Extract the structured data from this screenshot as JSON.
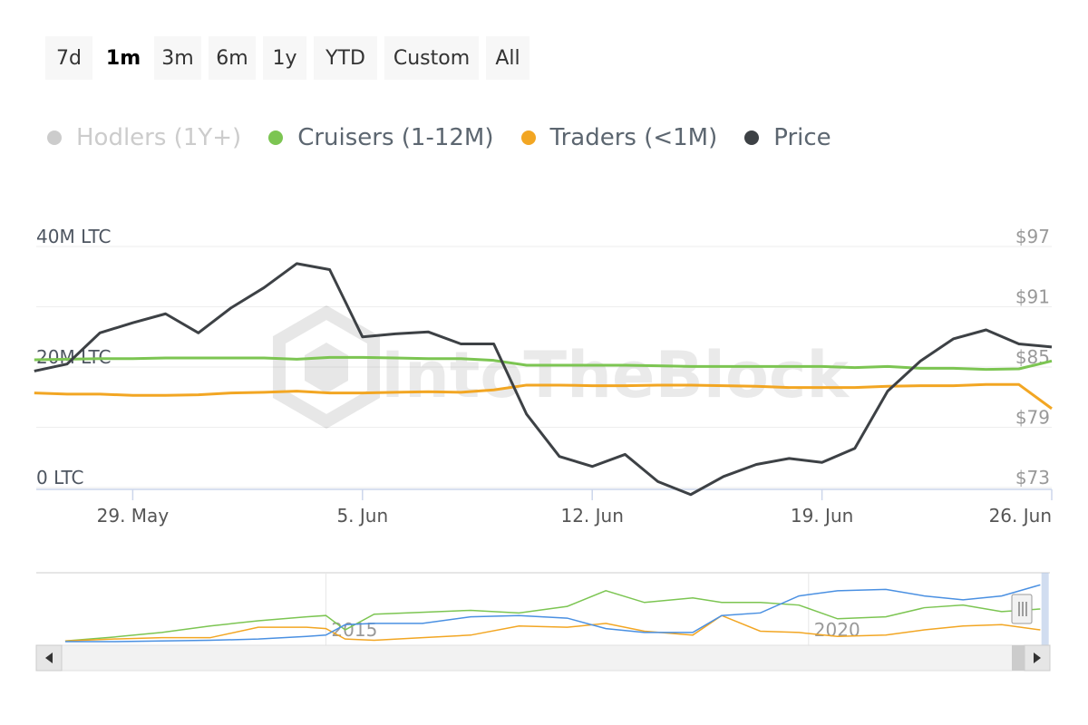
{
  "range_selector": {
    "buttons": [
      "7d",
      "1m",
      "3m",
      "6m",
      "1y",
      "YTD",
      "Custom",
      "All"
    ],
    "active": "1m"
  },
  "legend": [
    {
      "name": "Hodlers (1Y+)",
      "color": "#cccccc",
      "hidden": true
    },
    {
      "name": "Cruisers (1-12M)",
      "color": "#7cc552",
      "hidden": false
    },
    {
      "name": "Traders (<1M)",
      "color": "#f2a623",
      "hidden": false
    },
    {
      "name": "Price",
      "color": "#3d4145",
      "hidden": false
    }
  ],
  "watermark": "IntoTheBlock",
  "navigator": {
    "labels": [
      "2015",
      "2020"
    ]
  },
  "chart_data": {
    "type": "line",
    "x": [
      "May 26",
      "May 27",
      "May 28",
      "May 29",
      "May 30",
      "May 31",
      "Jun 1",
      "Jun 2",
      "Jun 3",
      "Jun 4",
      "Jun 5",
      "Jun 6",
      "Jun 7",
      "Jun 8",
      "Jun 9",
      "Jun 10",
      "Jun 11",
      "Jun 12",
      "Jun 13",
      "Jun 14",
      "Jun 15",
      "Jun 16",
      "Jun 17",
      "Jun 18",
      "Jun 19",
      "Jun 20",
      "Jun 21",
      "Jun 22",
      "Jun 23",
      "Jun 24",
      "Jun 25",
      "Jun 26"
    ],
    "x_ticks": [
      "29. May",
      "5. Jun",
      "12. Jun",
      "19. Jun",
      "26. Jun"
    ],
    "y_left": {
      "ticks": [
        "0 LTC",
        "20M LTC",
        "40M LTC"
      ],
      "range": [
        0,
        40
      ]
    },
    "y_right": {
      "ticks": [
        "$73",
        "$79",
        "$85",
        "$91",
        "$97"
      ],
      "range": [
        73,
        97
      ]
    },
    "series": [
      {
        "name": "Cruisers (1-12M)",
        "axis": "left",
        "color": "#7cc552",
        "values": [
          21.2,
          21.3,
          21.4,
          21.4,
          21.5,
          21.5,
          21.5,
          21.5,
          21.3,
          21.6,
          21.6,
          21.5,
          21.4,
          21.4,
          21.1,
          20.3,
          20.3,
          20.3,
          20.3,
          20.2,
          20.1,
          20.1,
          20.1,
          20.1,
          20.1,
          19.9,
          20.1,
          19.8,
          19.8,
          19.6,
          19.7,
          21.0
        ]
      },
      {
        "name": "Traders (<1M)",
        "axis": "left",
        "color": "#f2a623",
        "values": [
          15.7,
          15.5,
          15.5,
          15.3,
          15.3,
          15.4,
          15.7,
          15.8,
          16.0,
          15.7,
          15.7,
          15.8,
          15.9,
          15.8,
          16.2,
          17.0,
          17.0,
          16.9,
          16.9,
          17.0,
          17.0,
          16.9,
          16.8,
          16.6,
          16.6,
          16.6,
          16.8,
          16.9,
          16.9,
          17.1,
          17.1,
          13.1
        ]
      },
      {
        "name": "Price",
        "axis": "right",
        "color": "#3d4145",
        "values": [
          84.6,
          85.3,
          88.4,
          89.4,
          90.3,
          88.4,
          90.9,
          92.9,
          95.3,
          94.7,
          88.0,
          88.3,
          88.5,
          87.3,
          87.3,
          80.3,
          76.1,
          75.1,
          76.3,
          73.6,
          72.3,
          74.1,
          75.3,
          75.9,
          75.5,
          76.9,
          82.6,
          85.6,
          87.8,
          88.7,
          87.3,
          87.0
        ]
      }
    ]
  },
  "navigator_data": {
    "start_year": 2012,
    "end_year": 2022.5,
    "series": [
      {
        "name": "Cruisers (1-12M)",
        "color": "#7cc552",
        "x": [
          2012.3,
          2012.8,
          2013.3,
          2013.8,
          2014.3,
          2014.8,
          2015.0,
          2015.2,
          2015.5,
          2016.0,
          2016.5,
          2017.0,
          2017.5,
          2017.9,
          2018.3,
          2018.8,
          2019.1,
          2019.5,
          2019.9,
          2020.3,
          2020.8,
          2021.2,
          2021.6,
          2022.0,
          2022.4
        ],
        "values": [
          1,
          7,
          14,
          24,
          32,
          38,
          40,
          18,
          42,
          45,
          48,
          44,
          54,
          78,
          60,
          67,
          60,
          60,
          56,
          35,
          38,
          52,
          56,
          46,
          50
        ]
      },
      {
        "name": "Traders (<1M)",
        "color": "#f2a623",
        "x": [
          2012.3,
          2012.8,
          2013.3,
          2013.8,
          2014.3,
          2014.8,
          2015.0,
          2015.2,
          2015.5,
          2016.0,
          2016.5,
          2017.0,
          2017.5,
          2017.9,
          2018.3,
          2018.8,
          2019.1,
          2019.5,
          2019.9,
          2020.3,
          2020.8,
          2021.2,
          2021.6,
          2022.0,
          2022.4
        ],
        "values": [
          1,
          4,
          6,
          6,
          22,
          22,
          20,
          4,
          2,
          6,
          10,
          24,
          22,
          28,
          16,
          10,
          40,
          16,
          14,
          8,
          10,
          18,
          24,
          26,
          18
        ]
      },
      {
        "name": "Price",
        "color": "#4a90e2",
        "x": [
          2012.3,
          2012.8,
          2013.3,
          2013.8,
          2014.3,
          2014.8,
          2015.0,
          2015.2,
          2015.5,
          2016.0,
          2016.5,
          2017.0,
          2017.5,
          2017.9,
          2018.3,
          2018.8,
          2019.1,
          2019.5,
          2019.9,
          2020.3,
          2020.8,
          2021.2,
          2021.6,
          2022.0,
          2022.4
        ],
        "values": [
          0,
          0,
          1,
          2,
          4,
          8,
          10,
          26,
          28,
          28,
          38,
          40,
          36,
          20,
          14,
          14,
          40,
          44,
          70,
          78,
          80,
          70,
          64,
          70,
          87
        ]
      }
    ],
    "selection_end_year": 2022.45
  }
}
